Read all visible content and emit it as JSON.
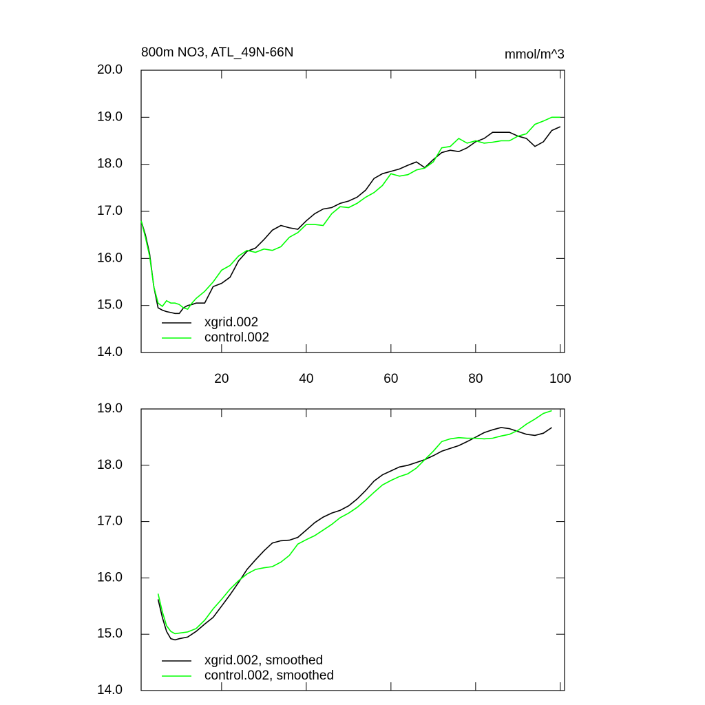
{
  "chart_data": [
    {
      "type": "line",
      "title": "800m NO3, ATL_49N-66N",
      "units": "mmol/m^3",
      "x": [
        1,
        2,
        3,
        4,
        5,
        6,
        7,
        8,
        9,
        10,
        11,
        12,
        13,
        14,
        16,
        18,
        20,
        22,
        24,
        26,
        28,
        30,
        32,
        34,
        36,
        38,
        40,
        42,
        44,
        46,
        48,
        50,
        52,
        54,
        56,
        58,
        60,
        62,
        64,
        66,
        68,
        70,
        72,
        74,
        76,
        78,
        80,
        82,
        84,
        86,
        88,
        90,
        92,
        94,
        96,
        98,
        100
      ],
      "series": [
        {
          "name": "xgrid.002",
          "color": "#000000",
          "values": [
            16.8,
            16.5,
            16.1,
            15.4,
            14.95,
            14.9,
            14.87,
            14.85,
            14.83,
            14.83,
            14.95,
            15.0,
            15.02,
            15.05,
            15.05,
            15.4,
            15.47,
            15.6,
            15.95,
            16.15,
            16.22,
            16.4,
            16.6,
            16.7,
            16.65,
            16.62,
            16.8,
            16.95,
            17.05,
            17.08,
            17.17,
            17.22,
            17.3,
            17.45,
            17.7,
            17.8,
            17.85,
            17.9,
            17.98,
            18.05,
            17.93,
            18.1,
            18.25,
            18.3,
            18.27,
            18.35,
            18.48,
            18.55,
            18.68,
            18.68,
            18.68,
            18.6,
            18.55,
            18.38,
            18.48,
            18.72,
            18.8
          ]
        },
        {
          "name": "control.002",
          "color": "#00ff00",
          "values": [
            16.8,
            16.45,
            16.05,
            15.4,
            15.05,
            14.98,
            15.1,
            15.05,
            15.05,
            15.02,
            14.95,
            14.92,
            15.05,
            15.15,
            15.3,
            15.5,
            15.75,
            15.85,
            16.05,
            16.17,
            16.13,
            16.2,
            16.17,
            16.25,
            16.45,
            16.55,
            16.72,
            16.72,
            16.7,
            16.95,
            17.1,
            17.08,
            17.17,
            17.3,
            17.4,
            17.55,
            17.8,
            17.75,
            17.78,
            17.88,
            17.92,
            18.05,
            18.35,
            18.38,
            18.55,
            18.45,
            18.5,
            18.45,
            18.47,
            18.5,
            18.5,
            18.6,
            18.65,
            18.85,
            18.92,
            19.0,
            19.0
          ]
        }
      ],
      "xlim": [
        1,
        101
      ],
      "xticks": [
        20,
        40,
        60,
        80,
        100
      ],
      "xtick_labels": true,
      "ylim": [
        14,
        20
      ],
      "yticks": [
        {
          "value": 14,
          "label": "14.0"
        },
        {
          "value": 15,
          "label": "15.0"
        },
        {
          "value": 16,
          "label": "16.0"
        },
        {
          "value": 17,
          "label": "17.0"
        },
        {
          "value": 18,
          "label": "18.0"
        },
        {
          "value": 19,
          "label": "19.0"
        },
        {
          "value": 20,
          "label": "20.0"
        }
      ],
      "legend": "lower left"
    },
    {
      "type": "line",
      "x": [
        5,
        6,
        7,
        8,
        9,
        10,
        12,
        14,
        16,
        18,
        20,
        22,
        24,
        26,
        28,
        30,
        32,
        34,
        36,
        38,
        40,
        42,
        44,
        46,
        48,
        50,
        52,
        54,
        56,
        58,
        60,
        62,
        64,
        66,
        68,
        70,
        72,
        74,
        76,
        78,
        80,
        82,
        84,
        86,
        88,
        90,
        92,
        94,
        96,
        98
      ],
      "series": [
        {
          "name": "xgrid.002, smoothed",
          "color": "#000000",
          "values": [
            15.62,
            15.3,
            15.05,
            14.92,
            14.9,
            14.92,
            14.95,
            15.05,
            15.18,
            15.3,
            15.5,
            15.7,
            15.92,
            16.15,
            16.32,
            16.48,
            16.62,
            16.66,
            16.67,
            16.72,
            16.85,
            16.98,
            17.08,
            17.15,
            17.2,
            17.28,
            17.4,
            17.55,
            17.72,
            17.83,
            17.9,
            17.97,
            18.0,
            18.05,
            18.1,
            18.17,
            18.25,
            18.3,
            18.35,
            18.42,
            18.5,
            18.58,
            18.63,
            18.67,
            18.65,
            18.6,
            18.55,
            18.53,
            18.57,
            18.67
          ]
        },
        {
          "name": "control.002, smoothed",
          "color": "#00ff00",
          "values": [
            15.72,
            15.4,
            15.15,
            15.05,
            15.01,
            15.02,
            15.04,
            15.1,
            15.25,
            15.45,
            15.62,
            15.8,
            15.95,
            16.07,
            16.15,
            16.18,
            16.2,
            16.28,
            16.4,
            16.6,
            16.68,
            16.75,
            16.85,
            16.95,
            17.07,
            17.15,
            17.25,
            17.38,
            17.52,
            17.65,
            17.73,
            17.8,
            17.85,
            17.95,
            18.1,
            18.25,
            18.42,
            18.47,
            18.49,
            18.48,
            18.48,
            18.47,
            18.48,
            18.52,
            18.55,
            18.62,
            18.73,
            18.82,
            18.92,
            18.97
          ]
        }
      ],
      "xlim": [
        1,
        101
      ],
      "xticks": [
        20,
        40,
        60,
        80,
        100
      ],
      "xtick_labels": false,
      "ylim": [
        14,
        19
      ],
      "yticks": [
        {
          "value": 14,
          "label": "14.0"
        },
        {
          "value": 15,
          "label": "15.0"
        },
        {
          "value": 16,
          "label": "16.0"
        },
        {
          "value": 17,
          "label": "17.0"
        },
        {
          "value": 18,
          "label": "18.0"
        },
        {
          "value": 19,
          "label": "19.0"
        }
      ],
      "legend": "lower left"
    }
  ]
}
